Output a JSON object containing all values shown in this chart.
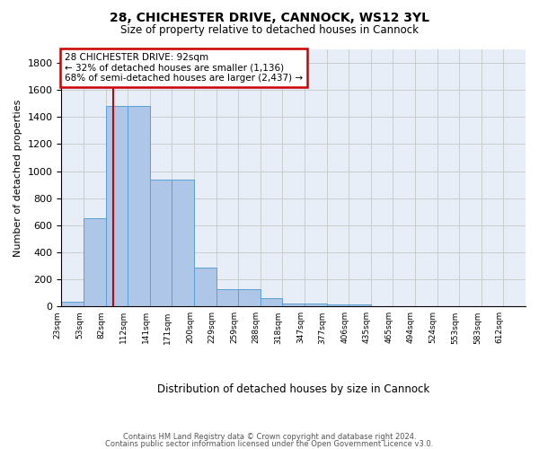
{
  "title_line1": "28, CHICHESTER DRIVE, CANNOCK, WS12 3YL",
  "title_line2": "Size of property relative to detached houses in Cannock",
  "xlabel": "Distribution of detached houses by size in Cannock",
  "ylabel": "Number of detached properties",
  "bin_labels": [
    "23sqm",
    "53sqm",
    "82sqm",
    "112sqm",
    "141sqm",
    "171sqm",
    "200sqm",
    "229sqm",
    "259sqm",
    "288sqm",
    "318sqm",
    "347sqm",
    "377sqm",
    "406sqm",
    "435sqm",
    "465sqm",
    "494sqm",
    "524sqm",
    "553sqm",
    "583sqm",
    "612sqm"
  ],
  "bar_heights": [
    35,
    650,
    1480,
    1480,
    935,
    935,
    290,
    125,
    125,
    60,
    25,
    25,
    15,
    15,
    5,
    2,
    1,
    1,
    0,
    0,
    0
  ],
  "bar_color": "#aec6e8",
  "bar_edge_color": "#5a9fd4",
  "property_bin_index": 2,
  "red_line_color": "#cc0000",
  "annotation_text": "28 CHICHESTER DRIVE: 92sqm\n← 32% of detached houses are smaller (1,136)\n68% of semi-detached houses are larger (2,437) →",
  "annotation_box_color": "#ffffff",
  "annotation_box_edge_color": "#cc0000",
  "ylim": [
    0,
    1900
  ],
  "yticks": [
    0,
    200,
    400,
    600,
    800,
    1000,
    1200,
    1400,
    1600,
    1800
  ],
  "grid_color": "#cccccc",
  "background_color": "#e8eef8",
  "footer_line1": "Contains HM Land Registry data © Crown copyright and database right 2024.",
  "footer_line2": "Contains public sector information licensed under the Open Government Licence v3.0."
}
